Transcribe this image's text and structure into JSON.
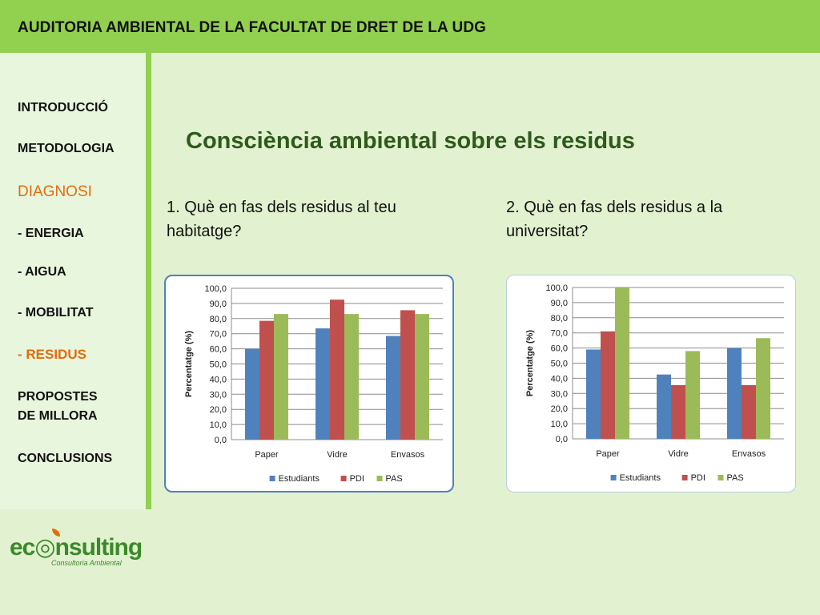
{
  "header": {
    "title": "AUDITORIA AMBIENTAL DE LA FACULTAT DE DRET DE LA UDG"
  },
  "sidebar": {
    "items": [
      {
        "label": "INTRODUCCIÓ"
      },
      {
        "label": "METODOLOGIA"
      },
      {
        "label": "DIAGNOSI"
      },
      {
        "label": "- ENERGIA"
      },
      {
        "label": "- AIGUA"
      },
      {
        "label": "- MOBILITAT"
      },
      {
        "label": "- RESIDUS"
      },
      {
        "label": "PROPOSTES"
      },
      {
        "label": "DE MILLORA"
      },
      {
        "label": "CONCLUSIONS"
      }
    ]
  },
  "slide": {
    "title": "Consciència ambiental sobre els residus",
    "question1": "1. Què en fas dels residus al teu habitatge?",
    "question2": "2. Què en fas dels residus a la universitat?"
  },
  "logo": {
    "word": "ec",
    "word_rest": "nsulting",
    "subtitle": "Consultoria Ambiental"
  },
  "colors": {
    "estudiants": "#4f81bd",
    "pdi": "#c0504d",
    "pas": "#9bbb59",
    "header": "#92d050",
    "accent": "#e36c0a"
  },
  "chart_data": [
    {
      "type": "bar",
      "categories": [
        "Paper",
        "Vidre",
        "Envasos"
      ],
      "series": [
        {
          "name": "Estudiants",
          "values": [
            60.0,
            73.5,
            68.5
          ]
        },
        {
          "name": "PDI",
          "values": [
            78.5,
            92.5,
            85.5
          ]
        },
        {
          "name": "PAS",
          "values": [
            83.0,
            83.0,
            83.0
          ]
        }
      ],
      "ylabel": "Percentatge (%)",
      "yticks": [
        "0,0",
        "10,0",
        "20,0",
        "30,0",
        "40,0",
        "50,0",
        "60,0",
        "70,0",
        "80,0",
        "90,0",
        "100,0"
      ],
      "ylim": [
        0,
        100
      ],
      "grid": true,
      "legend": "bottom"
    },
    {
      "type": "bar",
      "categories": [
        "Paper",
        "Vidre",
        "Envasos"
      ],
      "series": [
        {
          "name": "Estudiants",
          "values": [
            59.0,
            42.5,
            60.0
          ]
        },
        {
          "name": "PDI",
          "values": [
            71.0,
            35.5,
            35.5
          ]
        },
        {
          "name": "PAS",
          "values": [
            100.0,
            58.0,
            66.5
          ]
        }
      ],
      "ylabel": "Percentatge (%)",
      "yticks": [
        "0,0",
        "10,0",
        "20,0",
        "30,0",
        "40,0",
        "50,0",
        "60,0",
        "70,0",
        "80,0",
        "90,0",
        "100,0"
      ],
      "ylim": [
        0,
        100
      ],
      "grid": true,
      "legend": "bottom"
    }
  ]
}
